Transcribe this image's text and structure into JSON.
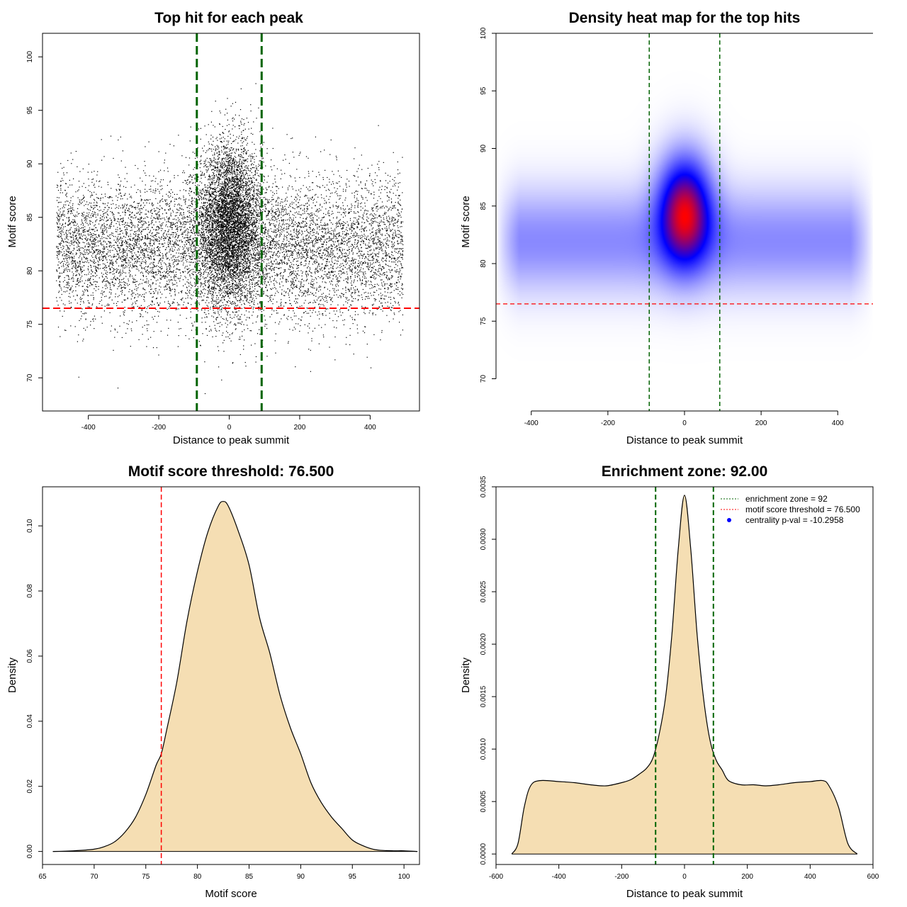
{
  "chart_data": [
    {
      "id": "scatter",
      "type": "scatter",
      "title": "Top hit for each peak",
      "xlabel": "Distance to peak summit",
      "ylabel": "Motif score",
      "xlim": [
        -530,
        540
      ],
      "ylim": [
        66.9,
        102.2
      ],
      "xticks": [
        -400,
        -200,
        0,
        200,
        400
      ],
      "yticks": [
        70,
        75,
        80,
        85,
        90,
        95,
        100
      ],
      "vlines": [
        -92,
        92
      ],
      "hline": 76.5,
      "point_model": {
        "n": 14000,
        "central_fraction": 0.4,
        "central_x_sd": 45,
        "central_y_mean": 84.5,
        "central_y_sd": 3.8,
        "background_x_range": [
          -492,
          492
        ],
        "background_y_mean": 82.2,
        "background_y_sd": 3.3,
        "y_range": [
          67.2,
          100
        ]
      }
    },
    {
      "id": "heatmap",
      "type": "heatmap",
      "title": "Density heat map for the top hits",
      "xlabel": "Distance to peak summit",
      "ylabel": "Motif score",
      "xlim": [
        -492,
        492
      ],
      "ylim": [
        67.2,
        100
      ],
      "xticks": [
        -400,
        -200,
        0,
        200,
        400
      ],
      "yticks": [
        70,
        75,
        80,
        85,
        90,
        95,
        100
      ],
      "vlines": [
        -92,
        92
      ],
      "hline": 76.5,
      "colormap": [
        "#ffffff",
        "#0000ff",
        "#ff0000"
      ],
      "density_model": {
        "central_weight": 1.0,
        "central_x_sd": 45,
        "central_y_mean": 84.5,
        "central_y_sd": 3.0,
        "background_weight": 0.22,
        "background_y_mean": 82.0,
        "background_y_sd": 2.8,
        "background_x_range": [
          -492,
          492
        ]
      }
    },
    {
      "id": "score_density",
      "type": "area",
      "title": "Motif score threshold: 76.500",
      "xlabel": "Motif score",
      "ylabel": "Density",
      "xlim": [
        65,
        101.5
      ],
      "ylim": [
        -0.004,
        0.112
      ],
      "xticks": [
        65,
        70,
        75,
        80,
        85,
        90,
        95,
        100
      ],
      "yticks": [
        0.0,
        0.02,
        0.04,
        0.06,
        0.08,
        0.1
      ],
      "ytick_labels": [
        "0.00",
        "0.02",
        "0.04",
        "0.06",
        "0.08",
        "0.10"
      ],
      "vline": 76.5,
      "fill": "#f5deb3",
      "x": [
        66,
        68,
        70,
        71,
        72,
        73,
        74,
        75,
        76,
        76.5,
        77,
        78,
        79,
        80,
        81,
        82,
        82.5,
        83,
        84,
        85,
        86,
        87,
        88,
        89,
        90,
        91,
        92,
        93,
        94,
        95,
        96,
        97,
        98,
        99,
        100,
        101.3
      ],
      "y": [
        0.0,
        0.0002,
        0.0007,
        0.0015,
        0.003,
        0.006,
        0.0105,
        0.0175,
        0.0265,
        0.03,
        0.037,
        0.052,
        0.071,
        0.086,
        0.098,
        0.106,
        0.1075,
        0.106,
        0.098,
        0.088,
        0.072,
        0.061,
        0.048,
        0.038,
        0.03,
        0.021,
        0.015,
        0.0105,
        0.007,
        0.0035,
        0.0018,
        0.0007,
        0.0003,
        0.0002,
        0.0002,
        0.0
      ]
    },
    {
      "id": "distance_density",
      "type": "area",
      "title": "Enrichment zone: 92.00",
      "xlabel": "Distance to peak summit",
      "ylabel": "Density",
      "xlim": [
        -600,
        600
      ],
      "ylim": [
        -0.0001,
        0.0035
      ],
      "xticks": [
        -600,
        -400,
        -200,
        0,
        200,
        400,
        600
      ],
      "yticks": [
        0.0,
        0.0005,
        0.001,
        0.0015,
        0.002,
        0.0025,
        0.003,
        0.0035
      ],
      "ytick_labels": [
        "0.0000",
        "0.0005",
        "0.0010",
        "0.0015",
        "0.0020",
        "0.0025",
        "0.0030",
        "0.0035"
      ],
      "vlines": [
        -92,
        92
      ],
      "fill": "#f5deb3",
      "x": [
        -550,
        -530,
        -510,
        -490,
        -460,
        -400,
        -350,
        -300,
        -250,
        -200,
        -170,
        -140,
        -120,
        -100,
        -80,
        -60,
        -40,
        -20,
        0,
        20,
        40,
        60,
        80,
        100,
        120,
        140,
        180,
        220,
        260,
        300,
        350,
        400,
        440,
        460,
        490,
        520,
        550
      ],
      "y": [
        0.0,
        0.0001,
        0.00045,
        0.00065,
        0.0007,
        0.00069,
        0.00068,
        0.00066,
        0.00065,
        0.00068,
        0.00071,
        0.00077,
        0.00082,
        0.00092,
        0.00115,
        0.0015,
        0.0021,
        0.0029,
        0.00342,
        0.0029,
        0.0021,
        0.0015,
        0.0011,
        0.0009,
        0.0008,
        0.0007,
        0.00066,
        0.00066,
        0.00065,
        0.00066,
        0.00068,
        0.00069,
        0.0007,
        0.00065,
        0.00045,
        0.0001,
        0.0
      ],
      "legend": {
        "position": "top-right",
        "entries": [
          {
            "label": "enrichment zone = 92",
            "color": "#006400",
            "kind": "line"
          },
          {
            "label": "motif score threshold = 76.500",
            "color": "#ff0000",
            "kind": "line"
          },
          {
            "label": "centrality p-val = -10.2958",
            "color": "#0000ff",
            "kind": "point"
          }
        ]
      }
    }
  ]
}
